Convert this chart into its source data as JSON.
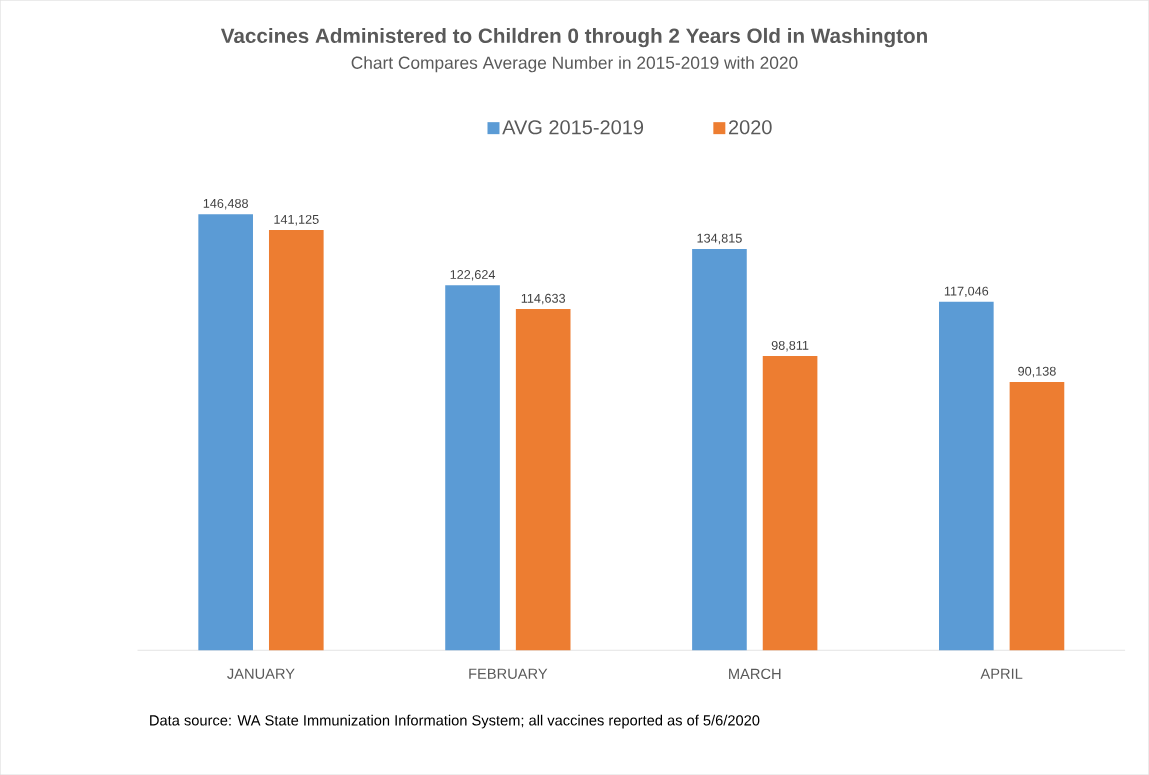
{
  "chart_data": {
    "type": "bar",
    "title": "Vaccines Administered to Children 0 through 2 Years Old in Washington",
    "subtitle": "Chart Compares Average Number in 2015-2019 with 2020",
    "categories": [
      "JANUARY",
      "FEBRUARY",
      "MARCH",
      "APRIL"
    ],
    "series": [
      {
        "name": "AVG 2015-2019",
        "color": "#5b9bd5",
        "values": [
          146488,
          122624,
          134815,
          117046
        ],
        "value_labels": [
          "146,488",
          "122,624",
          "134,815",
          "117,046"
        ]
      },
      {
        "name": "2020",
        "color": "#ed7d31",
        "values": [
          141125,
          114633,
          98811,
          90138
        ],
        "value_labels": [
          "141,125",
          "114,633",
          "98,811",
          "90,138"
        ]
      }
    ],
    "legend": "top",
    "annotations": [
      "Data source: WA State Immunization Information System; all vaccines reported as of 5/6/2020"
    ]
  }
}
